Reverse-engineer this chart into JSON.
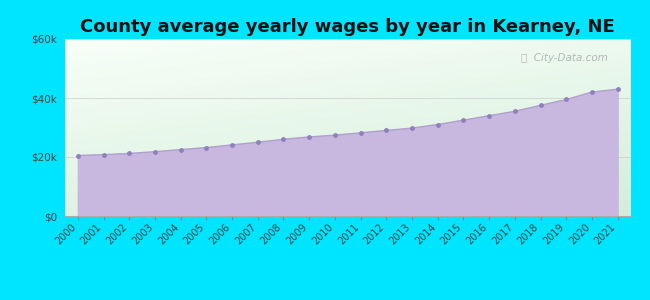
{
  "title": "County average yearly wages by year in Kearney, NE",
  "title_fontsize": 13,
  "years": [
    2000,
    2001,
    2002,
    2003,
    2004,
    2005,
    2006,
    2007,
    2008,
    2009,
    2010,
    2011,
    2012,
    2013,
    2014,
    2015,
    2016,
    2017,
    2018,
    2019,
    2020,
    2021
  ],
  "wages": [
    20500,
    20800,
    21200,
    21800,
    22500,
    23200,
    24100,
    25000,
    26000,
    26800,
    27400,
    28200,
    29000,
    29800,
    31000,
    32500,
    34000,
    35500,
    37500,
    39500,
    42000,
    43000
  ],
  "line_color": "#b0a0cc",
  "fill_color": "#c8b8e0",
  "marker_color": "#9080bb",
  "marker_size": 3.5,
  "background_outer": "#00e5ff",
  "grad_color_topleft": "#d4edda",
  "grad_color_bottomright": "#f8fff8",
  "ylim": [
    0,
    60000
  ],
  "yticks": [
    0,
    20000,
    40000,
    60000
  ],
  "ytick_labels": [
    "$0",
    "$20k",
    "$40k",
    "$60k"
  ],
  "watermark": "ⓘ  City-Data.com"
}
